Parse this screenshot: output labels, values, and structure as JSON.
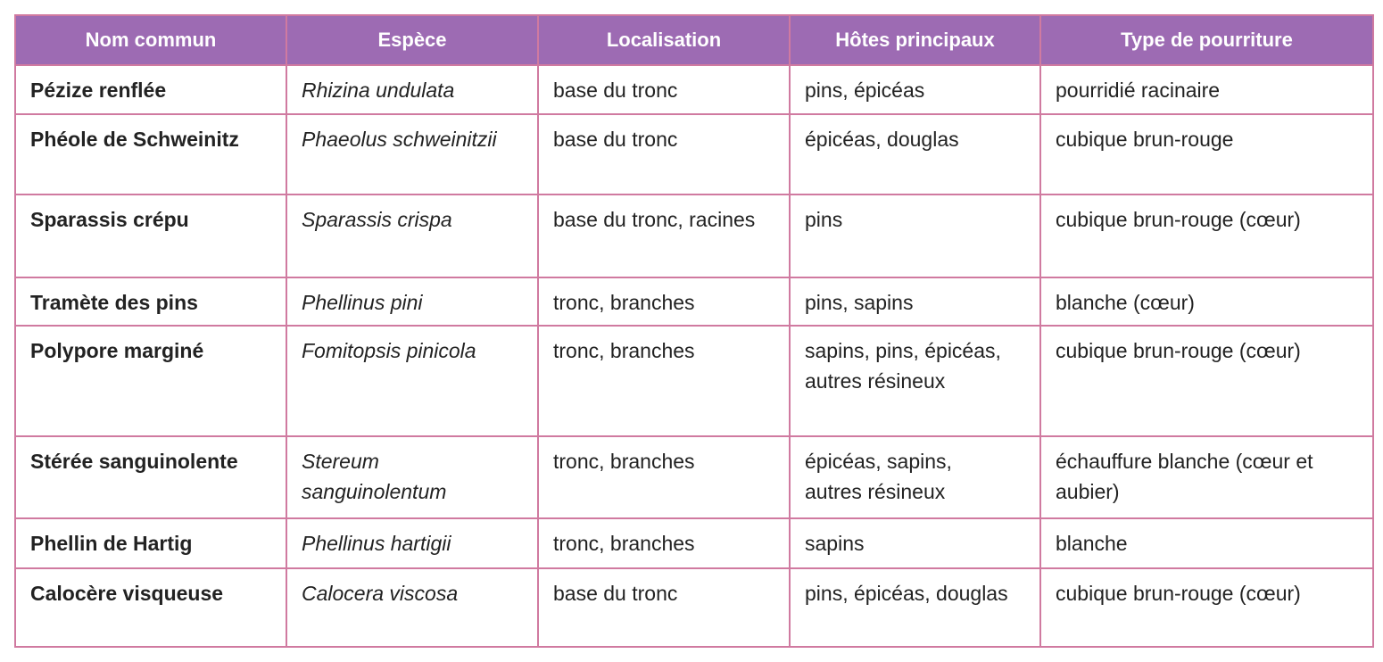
{
  "table": {
    "headers": [
      "Nom commun",
      "Espèce",
      "Localisation",
      "Hôtes principaux",
      "Type de pourriture"
    ],
    "rows": [
      [
        "Pézize renflée",
        "Rhizina undulata",
        "base du tronc",
        "pins, épicéas",
        "pourridié racinaire"
      ],
      [
        "Phéole de Schweinitz",
        "Phaeolus schweinitzii",
        "base du tronc",
        "épicéas, douglas",
        "cubique brun-rouge"
      ],
      [
        "Sparassis crépu",
        "Sparassis crispa",
        "base du tronc, racines",
        "pins",
        "cubique brun-rouge (cœur)"
      ],
      [
        "Tramète des pins",
        "Phellinus pini",
        "tronc, branches",
        "pins, sapins",
        "blanche (cœur)"
      ],
      [
        "Polypore marginé",
        "Fomitopsis pinicola",
        "tronc, branches",
        "sapins, pins, épicéas, autres résineux",
        "cubique brun-rouge (cœur)"
      ],
      [
        "Stérée sanguinolente",
        "Stereum sanguinolentum",
        "tronc, branches",
        "épicéas, sapins, autres résineux",
        "échauffure blanche (cœur et aubier)"
      ],
      [
        "Phellin de Hartig",
        "Phellinus hartigii",
        "tronc, branches",
        "sapins",
        "blanche"
      ],
      [
        "Calocère visqueuse",
        "Calocera viscosa",
        "base du tronc",
        "pins, épicéas, douglas",
        "cubique brun-rouge (cœur)"
      ]
    ]
  }
}
